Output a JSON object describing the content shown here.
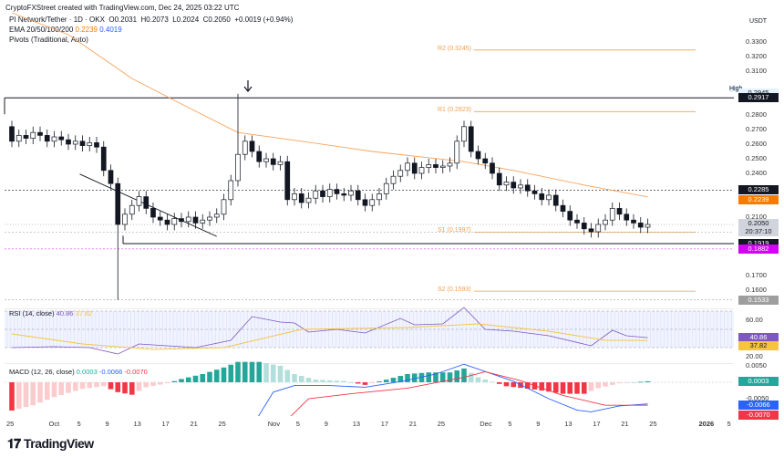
{
  "header": {
    "credit": "CryptoFXStreet created with TradingView.com, Dec 24, 2025 03:22 UTC",
    "symbol": "PI Network/Tether · 1D · OKX",
    "o": "O0.2031",
    "h": "H0.2073",
    "l": "L0.2024",
    "c": "C0.2050",
    "chg": "+0.0019 (+0.94%)",
    "ema_label": "EMA 20/50/100/200",
    "ema_v1": "0.2239",
    "ema_v2": "0.4019",
    "pivots_label": "Pivots (Traditional, Auto)"
  },
  "colors": {
    "ema50": "#f7a35c",
    "pivot": "#f0a050",
    "rsi": "#7e57c2",
    "rsi_ma": "#f5c542",
    "macd": "#2962ff",
    "signal": "#f23645",
    "hist_up": "#26a69a",
    "hist_up_light": "#b2dfdb",
    "hist_dn": "#f23645",
    "hist_dn_light": "#fccbcd",
    "marker": "#d500f9"
  },
  "chart_data": [
    {
      "type": "candlestick",
      "currency": "USDT",
      "ylim": [
        0.15,
        0.335
      ],
      "y_ticks": [
        "0.3300",
        "0.3200",
        "0.3100",
        "0.2800",
        "0.2700",
        "0.2600",
        "0.2500",
        "0.2400",
        "0.2100",
        "0.1700",
        "0.1600"
      ],
      "candles": [
        [
          "09-25",
          0.262
        ],
        [
          "09-26",
          0.266
        ],
        [
          "09-27",
          0.264
        ],
        [
          "09-28",
          0.268
        ],
        [
          "09-29",
          0.266
        ],
        [
          "09-30",
          0.262
        ],
        [
          "10-01",
          0.265
        ],
        [
          "10-02",
          0.263
        ],
        [
          "10-03",
          0.26
        ],
        [
          "10-04",
          0.262
        ],
        [
          "10-05",
          0.259
        ],
        [
          "10-06",
          0.261
        ],
        [
          "10-07",
          0.258
        ],
        [
          "10-08",
          0.242
        ],
        [
          "10-09",
          0.233
        ],
        [
          "10-10",
          0.205
        ],
        [
          "10-11",
          0.212
        ],
        [
          "10-12",
          0.218
        ],
        [
          "10-13",
          0.224
        ],
        [
          "10-14",
          0.216
        ],
        [
          "10-15",
          0.21
        ],
        [
          "10-16",
          0.208
        ],
        [
          "10-17",
          0.205
        ],
        [
          "10-18",
          0.209
        ],
        [
          "10-19",
          0.207
        ],
        [
          "10-20",
          0.21
        ],
        [
          "10-21",
          0.206
        ],
        [
          "10-22",
          0.208
        ],
        [
          "10-23",
          0.21
        ],
        [
          "10-24",
          0.212
        ],
        [
          "10-25",
          0.222
        ],
        [
          "10-26",
          0.235
        ],
        [
          "10-27",
          0.253
        ],
        [
          "10-28",
          0.262
        ],
        [
          "10-29",
          0.255
        ],
        [
          "10-30",
          0.248
        ],
        [
          "10-31",
          0.25
        ],
        [
          "11-01",
          0.246
        ],
        [
          "11-02",
          0.248
        ],
        [
          "11-03",
          0.222
        ],
        [
          "11-04",
          0.226
        ],
        [
          "11-05",
          0.22
        ],
        [
          "11-06",
          0.223
        ],
        [
          "11-07",
          0.228
        ],
        [
          "11-08",
          0.224
        ],
        [
          "11-09",
          0.229
        ],
        [
          "11-10",
          0.226
        ],
        [
          "11-11",
          0.225
        ],
        [
          "11-12",
          0.228
        ],
        [
          "11-13",
          0.222
        ],
        [
          "11-14",
          0.218
        ],
        [
          "11-15",
          0.222
        ],
        [
          "11-16",
          0.226
        ],
        [
          "11-17",
          0.233
        ],
        [
          "11-18",
          0.238
        ],
        [
          "11-19",
          0.242
        ],
        [
          "11-20",
          0.247
        ],
        [
          "11-21",
          0.24
        ],
        [
          "11-22",
          0.244
        ],
        [
          "11-23",
          0.246
        ],
        [
          "11-24",
          0.244
        ],
        [
          "11-25",
          0.245
        ],
        [
          "11-26",
          0.247
        ],
        [
          "11-27",
          0.262
        ],
        [
          "11-28",
          0.272
        ],
        [
          "11-29",
          0.255
        ],
        [
          "11-30",
          0.25
        ],
        [
          "12-01",
          0.247
        ],
        [
          "12-02",
          0.24
        ],
        [
          "12-03",
          0.232
        ],
        [
          "12-04",
          0.234
        ],
        [
          "12-05",
          0.23
        ],
        [
          "12-06",
          0.232
        ],
        [
          "12-07",
          0.228
        ],
        [
          "12-08",
          0.226
        ],
        [
          "12-09",
          0.222
        ],
        [
          "12-10",
          0.225
        ],
        [
          "12-11",
          0.218
        ],
        [
          "12-12",
          0.214
        ],
        [
          "12-13",
          0.208
        ],
        [
          "12-14",
          0.206
        ],
        [
          "12-15",
          0.202
        ],
        [
          "12-16",
          0.2
        ],
        [
          "12-17",
          0.205
        ],
        [
          "12-18",
          0.208
        ],
        [
          "12-19",
          0.216
        ],
        [
          "12-20",
          0.212
        ],
        [
          "12-21",
          0.208
        ],
        [
          "12-22",
          0.206
        ],
        [
          "12-23",
          0.2031
        ],
        [
          "12-24",
          0.205
        ]
      ],
      "first_open": 0.272,
      "extreme_high": [
        "10-27",
        0.2945
      ],
      "extreme_low": [
        "10-10",
        0.1533
      ],
      "ema50": [
        [
          "09-25",
          0.35
        ],
        [
          "10-03",
          0.335
        ],
        [
          "10-12",
          0.305
        ],
        [
          "10-20",
          0.285
        ],
        [
          "10-27",
          0.268
        ],
        [
          "11-05",
          0.262
        ],
        [
          "11-15",
          0.255
        ],
        [
          "11-28",
          0.248
        ],
        [
          "12-05",
          0.242
        ],
        [
          "12-15",
          0.232
        ],
        [
          "12-24",
          0.2239
        ]
      ],
      "pivots": [
        {
          "label": "R2 (0.3245)",
          "value": 0.3245
        },
        {
          "label": "R1 (0.2823)",
          "value": 0.2823
        },
        {
          "label": "S1 (0.1997)",
          "value": 0.1997
        },
        {
          "label": "S2 (0.1593)",
          "value": 0.1593
        }
      ],
      "high_label": "High",
      "high_value": "0.2945",
      "levels": [
        {
          "value": 0.2917,
          "label": "0.2917"
        },
        {
          "value": 0.2285,
          "label": "0.2285"
        },
        {
          "value": 0.1998,
          "label": "0.1998"
        },
        {
          "value": 0.1919,
          "label": "0.1919"
        },
        {
          "value": 0.1882,
          "label": "0.1882"
        },
        {
          "value": 0.1533,
          "label": "0.1533"
        }
      ],
      "ema_badge": "0.2239",
      "last_price": "0.2050",
      "countdown": "20:37:10",
      "trendline": [
        [
          "10-05",
          0.2395
        ],
        [
          "10-24",
          0.1968
        ]
      ]
    },
    {
      "type": "line",
      "title": "RSI (14, close)",
      "value": "40.86",
      "ma_value": "37.82",
      "y_ticks": [
        "60.00",
        "20.00"
      ],
      "bands": [
        70,
        50,
        30
      ],
      "rsi": [
        [
          "09-25",
          30
        ],
        [
          "10-01",
          31
        ],
        [
          "10-06",
          30
        ],
        [
          "10-10",
          23
        ],
        [
          "10-13",
          34
        ],
        [
          "10-21",
          30
        ],
        [
          "10-26",
          38
        ],
        [
          "10-29",
          64
        ],
        [
          "11-02",
          58
        ],
        [
          "11-04",
          57
        ],
        [
          "11-06",
          47
        ],
        [
          "11-10",
          50
        ],
        [
          "11-14",
          46
        ],
        [
          "11-19",
          62
        ],
        [
          "11-21",
          55
        ],
        [
          "11-25",
          56
        ],
        [
          "11-28",
          74
        ],
        [
          "12-01",
          50
        ],
        [
          "12-05",
          48
        ],
        [
          "12-10",
          43
        ],
        [
          "12-16",
          32
        ],
        [
          "12-19",
          49
        ],
        [
          "12-21",
          43
        ],
        [
          "12-24",
          40.86
        ]
      ],
      "rsi_ma": [
        [
          "09-25",
          45
        ],
        [
          "10-05",
          34
        ],
        [
          "10-15",
          28
        ],
        [
          "10-25",
          30
        ],
        [
          "11-05",
          50
        ],
        [
          "11-20",
          52
        ],
        [
          "11-30",
          56
        ],
        [
          "12-10",
          48
        ],
        [
          "12-18",
          38
        ],
        [
          "12-24",
          37.82
        ]
      ]
    },
    {
      "type": "bar+line",
      "title": "MACD (12, 26, close)",
      "hist_value": "0.0003",
      "macd_value": "-0.0066",
      "signal_value": "-0.0070",
      "y_ticks": [
        "0.0050",
        "-0.0050"
      ],
      "hist": [
        [
          "09-25",
          -0.0086
        ],
        [
          "09-28",
          -0.007
        ],
        [
          "10-01",
          -0.0045
        ],
        [
          "10-05",
          -0.002
        ],
        [
          "10-08",
          -0.0012
        ],
        [
          "10-10",
          -0.003
        ],
        [
          "10-12",
          -0.0038
        ],
        [
          "10-14",
          -0.0015
        ],
        [
          "10-17",
          -0.0003
        ],
        [
          "10-19",
          0.001
        ],
        [
          "10-22",
          0.0025
        ],
        [
          "10-25",
          0.0045
        ],
        [
          "10-27",
          0.0062
        ],
        [
          "10-30",
          0.0062
        ],
        [
          "11-02",
          0.005
        ],
        [
          "11-04",
          0.0025
        ],
        [
          "11-07",
          0.0008
        ],
        [
          "11-11",
          0.0004
        ],
        [
          "11-14",
          -0.0008
        ],
        [
          "11-17",
          0.0008
        ],
        [
          "11-20",
          0.0025
        ],
        [
          "11-23",
          0.003
        ],
        [
          "11-26",
          0.003
        ],
        [
          "11-28",
          0.0042
        ],
        [
          "11-30",
          0.0015
        ],
        [
          "12-02",
          0.0002
        ],
        [
          "12-04",
          -0.0012
        ],
        [
          "12-08",
          -0.0022
        ],
        [
          "12-12",
          -0.0035
        ],
        [
          "12-15",
          -0.0035
        ],
        [
          "12-17",
          -0.0018
        ],
        [
          "12-20",
          -0.0003
        ],
        [
          "12-24",
          0.0003
        ]
      ],
      "macd": [
        [
          "10-29",
          -0.0135
        ],
        [
          "11-01",
          -0.003
        ],
        [
          "11-04",
          -0.001
        ],
        [
          "11-09",
          -0.001
        ],
        [
          "11-14",
          -0.0015
        ],
        [
          "11-19",
          0.0002
        ],
        [
          "11-24",
          0.0025
        ],
        [
          "11-28",
          0.0055
        ],
        [
          "12-05",
          0.0003
        ],
        [
          "12-10",
          -0.005
        ],
        [
          "12-14",
          -0.0085
        ],
        [
          "12-16",
          -0.009
        ],
        [
          "12-20",
          -0.0072
        ],
        [
          "12-24",
          -0.0066
        ]
      ],
      "signal": [
        [
          "11-02",
          -0.0135
        ],
        [
          "11-06",
          -0.005
        ],
        [
          "11-12",
          -0.0035
        ],
        [
          "11-20",
          -0.0018
        ],
        [
          "11-28",
          0.0015
        ],
        [
          "12-01",
          0.0032
        ],
        [
          "12-06",
          0.0005
        ],
        [
          "12-12",
          -0.004
        ],
        [
          "12-18",
          -0.007
        ],
        [
          "12-24",
          -0.007
        ]
      ]
    },
    {
      "type": "axis",
      "x_ticks": [
        [
          "09-25",
          "25"
        ],
        [
          "10-01",
          "Oct"
        ],
        [
          "10-05",
          "5"
        ],
        [
          "10-09",
          "9"
        ],
        [
          "10-13",
          "13"
        ],
        [
          "10-17",
          "17"
        ],
        [
          "10-21",
          "21"
        ],
        [
          "10-25",
          "25"
        ],
        [
          "11-01",
          "Nov"
        ],
        [
          "11-05",
          "5"
        ],
        [
          "11-09",
          "9"
        ],
        [
          "11-13",
          "13"
        ],
        [
          "11-17",
          "17"
        ],
        [
          "11-21",
          "21"
        ],
        [
          "11-25",
          "25"
        ],
        [
          "12-01",
          "Dec"
        ],
        [
          "12-05",
          "5"
        ],
        [
          "12-09",
          "9"
        ],
        [
          "12-13",
          "13"
        ],
        [
          "12-17",
          "17"
        ],
        [
          "12-21",
          "21"
        ],
        [
          "12-25",
          "25"
        ],
        [
          "01-01",
          "2026"
        ],
        [
          "01-05",
          "5"
        ]
      ]
    }
  ],
  "footer": {
    "logo": "TradingView"
  }
}
